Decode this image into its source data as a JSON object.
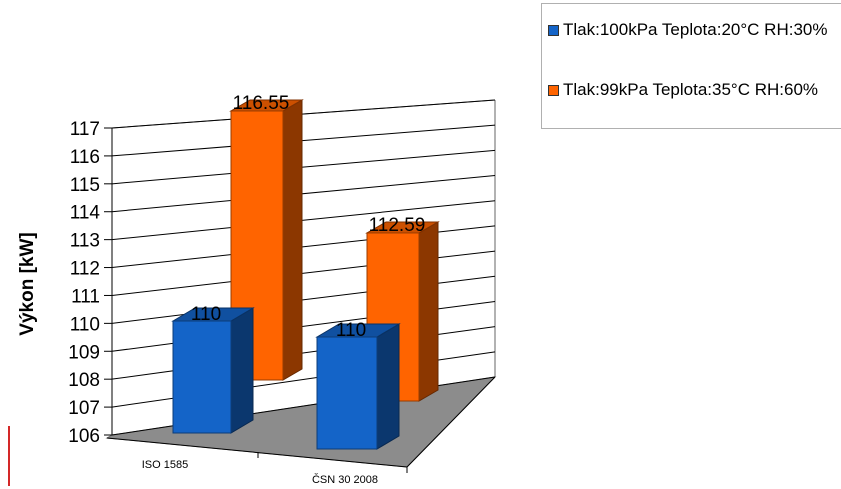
{
  "chart_data": {
    "type": "bar",
    "view": "3d-clustered-column",
    "categories": [
      "ISO 1585",
      "ČSN 30 2008"
    ],
    "series": [
      {
        "name": "Tlak:100kPa Teplota:20°C RH:30%",
        "values": [
          110,
          110
        ],
        "color": "#1464c8"
      },
      {
        "name": "Tlak:99kPa Teplota:35°C RH:60%",
        "values": [
          116.55,
          112.59
        ],
        "color": "#ff6400"
      }
    ],
    "data_labels": [
      [
        "110",
        "110"
      ],
      [
        "116.55",
        "112.59"
      ]
    ],
    "ylabel": "Výkon [kW]",
    "xlabel": "",
    "ylim": [
      106,
      117
    ],
    "yticks": [
      "106",
      "107",
      "108",
      "109",
      "110",
      "111",
      "112",
      "113",
      "114",
      "115",
      "116",
      "117"
    ],
    "grid": true,
    "legend_position": "top-right"
  },
  "colors": {
    "floor": "#8c8c8c",
    "gridline": "#000000"
  }
}
